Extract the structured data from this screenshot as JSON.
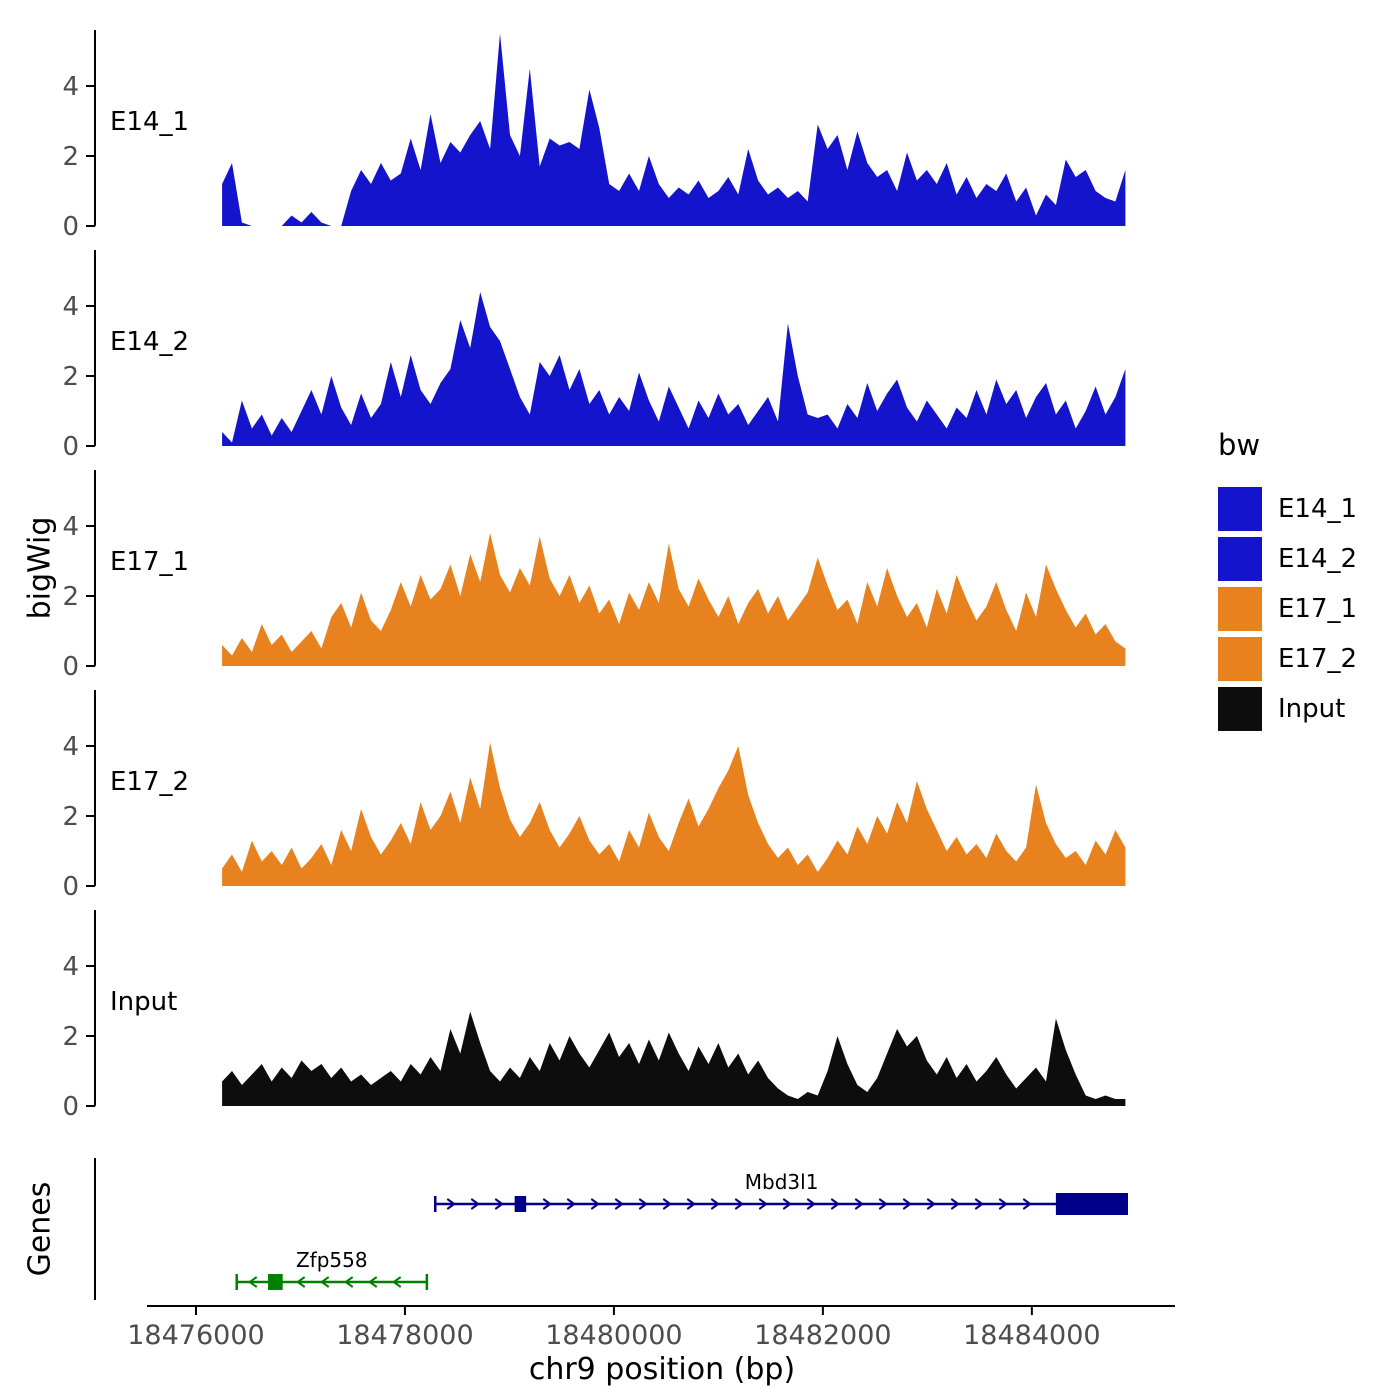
{
  "chart_data": {
    "type": "area",
    "title": "",
    "xlabel": "chr9 position (bp)",
    "ylabel": "bigWig",
    "genes_panel_label": "Genes",
    "x_domain": [
      18475560,
      18485370
    ],
    "x_ticks": [
      18476000,
      18478000,
      18480000,
      18482000,
      18484000
    ],
    "x_tick_labels": [
      "18476000",
      "18478000",
      "18480000",
      "18482000",
      "18484000"
    ],
    "y_ticks": [
      0,
      2,
      4
    ],
    "y_max": 5.6,
    "grid": false,
    "legend_position": "right",
    "sample_start_bp": 18476250,
    "sample_step_bp": 95,
    "styles": {
      "blue": "#1414cc",
      "orange": "#E8821E",
      "black": "#0d0d0d",
      "gene_blue": "#00008B",
      "gene_green": "#008000",
      "axis_color": "#000000",
      "tick_label_color": "#4d4d4d"
    },
    "legend": {
      "title": "bw",
      "entries": [
        {
          "label": "E14_1",
          "color": "#1414cc"
        },
        {
          "label": "E14_2",
          "color": "#1414cc"
        },
        {
          "label": "E17_1",
          "color": "#E8821E"
        },
        {
          "label": "E17_2",
          "color": "#E8821E"
        },
        {
          "label": "Input",
          "color": "#0d0d0d"
        }
      ]
    },
    "tracks": [
      {
        "name": "E14_1",
        "label": "E14_1",
        "color": "#1414cc",
        "values": [
          1.2,
          1.8,
          0.1,
          0,
          0,
          0,
          0,
          0.3,
          0.1,
          0.4,
          0.1,
          0,
          0,
          1.0,
          1.6,
          1.2,
          1.8,
          1.3,
          1.5,
          2.5,
          1.6,
          3.2,
          1.8,
          2.4,
          2.1,
          2.6,
          3.0,
          2.2,
          5.5,
          2.6,
          2.0,
          4.5,
          1.7,
          2.5,
          2.3,
          2.4,
          2.2,
          3.9,
          2.8,
          1.2,
          1.0,
          1.5,
          1.0,
          2.0,
          1.2,
          0.8,
          1.1,
          0.9,
          1.3,
          0.8,
          1.0,
          1.4,
          0.9,
          2.2,
          1.3,
          0.9,
          1.1,
          0.8,
          1.0,
          0.7,
          2.9,
          2.2,
          2.6,
          1.6,
          2.7,
          1.8,
          1.4,
          1.6,
          1.0,
          2.1,
          1.3,
          1.6,
          1.2,
          1.8,
          0.9,
          1.4,
          0.8,
          1.2,
          1.0,
          1.5,
          0.7,
          1.1,
          0.3,
          0.9,
          0.6,
          1.9,
          1.4,
          1.6,
          1.0,
          0.8,
          0.7,
          1.6
        ]
      },
      {
        "name": "E14_2",
        "label": "E14_2",
        "color": "#1414cc",
        "values": [
          0.4,
          0.1,
          1.3,
          0.5,
          0.9,
          0.3,
          0.8,
          0.4,
          1.0,
          1.6,
          0.9,
          2.0,
          1.1,
          0.6,
          1.5,
          0.8,
          1.2,
          2.4,
          1.4,
          2.6,
          1.6,
          1.2,
          1.8,
          2.2,
          3.6,
          2.8,
          4.4,
          3.4,
          3.0,
          2.2,
          1.4,
          0.9,
          2.4,
          2.0,
          2.6,
          1.6,
          2.2,
          1.2,
          1.6,
          0.9,
          1.4,
          1.0,
          2.1,
          1.3,
          0.7,
          1.7,
          1.1,
          0.5,
          1.3,
          0.8,
          1.5,
          0.9,
          1.2,
          0.6,
          1.0,
          1.4,
          0.7,
          3.5,
          2.0,
          0.9,
          0.8,
          0.9,
          0.5,
          1.2,
          0.8,
          1.8,
          1.0,
          1.5,
          1.9,
          1.1,
          0.7,
          1.3,
          0.9,
          0.5,
          1.1,
          0.8,
          1.6,
          0.9,
          1.9,
          1.2,
          1.6,
          0.8,
          1.4,
          1.8,
          0.9,
          1.3,
          0.5,
          1.0,
          1.7,
          0.9,
          1.4,
          2.2
        ]
      },
      {
        "name": "E17_1",
        "label": "E17_1",
        "color": "#E8821E",
        "values": [
          0.6,
          0.3,
          0.8,
          0.4,
          1.2,
          0.6,
          0.9,
          0.4,
          0.7,
          1.0,
          0.5,
          1.4,
          1.8,
          1.1,
          2.1,
          1.3,
          1.0,
          1.6,
          2.4,
          1.7,
          2.6,
          1.9,
          2.2,
          2.9,
          2.0,
          3.2,
          2.4,
          3.8,
          2.6,
          2.1,
          2.8,
          2.3,
          3.7,
          2.5,
          2.0,
          2.6,
          1.8,
          2.3,
          1.5,
          1.9,
          1.2,
          2.1,
          1.6,
          2.4,
          1.8,
          3.5,
          2.2,
          1.7,
          2.5,
          1.9,
          1.4,
          2.0,
          1.2,
          1.8,
          2.2,
          1.5,
          2.0,
          1.3,
          1.7,
          2.1,
          3.1,
          2.3,
          1.6,
          1.9,
          1.2,
          2.4,
          1.7,
          2.8,
          2.0,
          1.4,
          1.8,
          1.1,
          2.2,
          1.5,
          2.6,
          1.9,
          1.3,
          1.7,
          2.4,
          1.6,
          1.0,
          2.1,
          1.4,
          2.9,
          2.2,
          1.6,
          1.1,
          1.5,
          0.9,
          1.2,
          0.7,
          0.5
        ]
      },
      {
        "name": "E17_2",
        "label": "E17_2",
        "color": "#E8821E",
        "values": [
          0.5,
          0.9,
          0.4,
          1.3,
          0.7,
          1.0,
          0.6,
          1.1,
          0.5,
          0.8,
          1.2,
          0.6,
          1.6,
          1.0,
          2.2,
          1.4,
          0.9,
          1.3,
          1.8,
          1.2,
          2.4,
          1.6,
          2.0,
          2.7,
          1.8,
          3.1,
          2.2,
          4.1,
          2.8,
          1.9,
          1.4,
          1.8,
          2.4,
          1.6,
          1.1,
          1.5,
          2.0,
          1.3,
          0.9,
          1.2,
          0.7,
          1.6,
          1.1,
          2.1,
          1.4,
          1.0,
          1.8,
          2.5,
          1.7,
          2.2,
          2.8,
          3.3,
          4.0,
          2.6,
          1.8,
          1.2,
          0.8,
          1.1,
          0.6,
          0.9,
          0.4,
          0.8,
          1.3,
          0.9,
          1.7,
          1.2,
          2.0,
          1.5,
          2.4,
          1.8,
          3.0,
          2.2,
          1.6,
          1.0,
          1.4,
          0.9,
          1.2,
          0.8,
          1.5,
          1.0,
          0.7,
          1.1,
          2.9,
          1.8,
          1.2,
          0.8,
          1.0,
          0.6,
          1.3,
          0.9,
          1.6,
          1.1
        ]
      },
      {
        "name": "Input",
        "label": "Input",
        "color": "#0d0d0d",
        "values": [
          0.7,
          1.0,
          0.6,
          0.9,
          1.2,
          0.7,
          1.1,
          0.8,
          1.3,
          1.0,
          1.2,
          0.8,
          1.1,
          0.7,
          0.9,
          0.6,
          0.8,
          1.0,
          0.7,
          1.2,
          0.9,
          1.4,
          1.0,
          2.2,
          1.5,
          2.7,
          1.8,
          1.0,
          0.7,
          1.1,
          0.8,
          1.4,
          1.0,
          1.8,
          1.3,
          2.0,
          1.5,
          1.1,
          1.6,
          2.1,
          1.4,
          1.8,
          1.2,
          1.9,
          1.3,
          2.1,
          1.5,
          1.0,
          1.7,
          1.2,
          1.8,
          1.1,
          1.5,
          0.9,
          1.3,
          0.8,
          0.5,
          0.3,
          0.2,
          0.4,
          0.3,
          1.0,
          2.0,
          1.2,
          0.6,
          0.4,
          0.8,
          1.5,
          2.2,
          1.7,
          2.0,
          1.3,
          0.9,
          1.4,
          0.8,
          1.2,
          0.7,
          1.0,
          1.4,
          0.9,
          0.5,
          0.8,
          1.1,
          0.7,
          2.5,
          1.6,
          0.9,
          0.3,
          0.2,
          0.3,
          0.2,
          0.2
        ]
      }
    ],
    "genes": [
      {
        "name": "Mbd3l1",
        "color": "#00008B",
        "strand": "+",
        "start": 18478290,
        "end": 18484920,
        "exons": [
          [
            18479050,
            18479160
          ]
        ],
        "thick": [
          18484230,
          18484920
        ]
      },
      {
        "name": "Zfp558",
        "color": "#008000",
        "strand": "-",
        "start": 18476390,
        "end": 18478210,
        "exons": [
          [
            18476690,
            18476830
          ]
        ],
        "thick": null
      }
    ]
  }
}
